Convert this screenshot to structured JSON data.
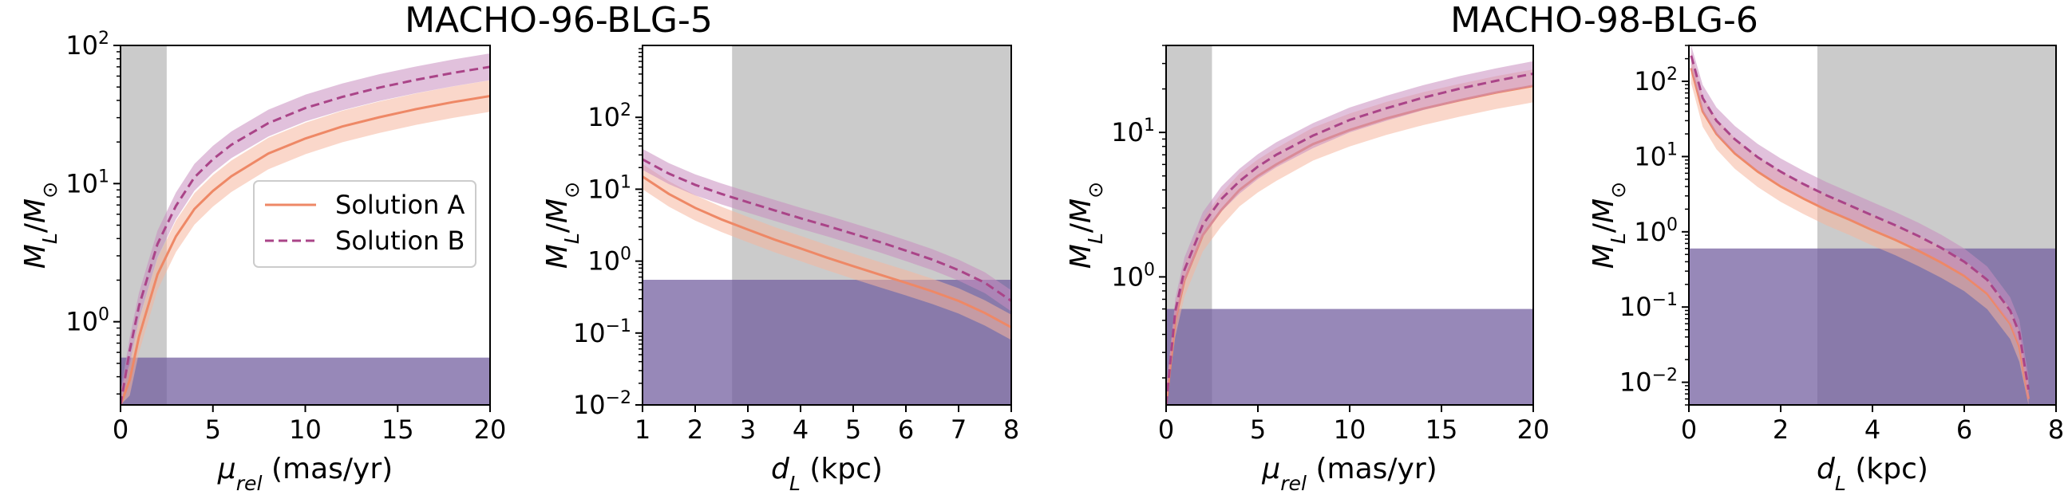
{
  "figure": {
    "titles": [
      "MACHO-96-BLG-5",
      "MACHO-98-BLG-6"
    ]
  },
  "colors": {
    "solution_a": "#ee8866",
    "solution_b": "#aa4488",
    "band_a": "#f6b79e",
    "band_b": "#c98ec0",
    "excluded_gray": "#bdbdbd",
    "excluded_purple": "#6f5a9c"
  },
  "legend": {
    "solution_a_label": "Solution A",
    "solution_b_label": "Solution B",
    "location": "center-right of first panel"
  },
  "chart_data": [
    {
      "type": "line",
      "event": "MACHO-96-BLG-5",
      "panel": "mass vs relative proper motion",
      "xlabel": "μrel (mas/yr)",
      "ylabel": "ML/M⊙",
      "xlim": [
        0,
        20
      ],
      "ylim": [
        0.25,
        100
      ],
      "yscale": "log",
      "xticks": [
        0,
        5,
        10,
        15,
        20
      ],
      "yticks": [
        1,
        10,
        100
      ],
      "ytick_exponents": [
        "0",
        "1",
        "2"
      ],
      "gray_excluded_x": [
        0,
        2.5
      ],
      "purple_excluded_y": [
        0.25,
        0.55
      ],
      "series": [
        {
          "name": "Solution A",
          "style": "solid",
          "x": [
            0,
            0.5,
            1,
            2,
            3,
            4,
            5,
            6,
            8,
            10,
            12,
            14,
            16,
            18,
            20
          ],
          "y": [
            0.25,
            0.38,
            0.78,
            2.2,
            4.15,
            6.55,
            8.85,
            11.3,
            16.5,
            21.2,
            25.9,
            30.2,
            34.6,
            38.9,
            43
          ],
          "band_factor": 1.3
        },
        {
          "name": "Solution B",
          "style": "dashed",
          "x": [
            0,
            0.5,
            1,
            2,
            3,
            4,
            5,
            6,
            8,
            10,
            12,
            14,
            16,
            18,
            20
          ],
          "y": [
            0.25,
            0.62,
            1.3,
            3.65,
            6.9,
            11.1,
            15,
            19.1,
            27.4,
            35.2,
            42.4,
            49.5,
            56.4,
            63.3,
            70
          ],
          "band_factor": 1.25
        }
      ]
    },
    {
      "type": "line",
      "event": "MACHO-96-BLG-5",
      "panel": "mass vs lens distance",
      "xlabel": "dL (kpc)",
      "ylabel": "ML/M⊙",
      "xlim": [
        1,
        8
      ],
      "ylim": [
        0.01,
        1000
      ],
      "yscale": "log",
      "xticks": [
        1,
        2,
        3,
        4,
        5,
        6,
        7,
        8
      ],
      "yticks": [
        0.01,
        0.1,
        1,
        10,
        100
      ],
      "ytick_exponents": [
        "−2",
        "−1",
        "0",
        "1",
        "2"
      ],
      "gray_excluded_x": [
        2.7,
        8
      ],
      "purple_excluded_y": [
        0.01,
        0.55
      ],
      "series": [
        {
          "name": "Solution A",
          "style": "solid",
          "x": [
            1,
            1.5,
            2,
            2.5,
            3,
            3.5,
            4,
            4.5,
            5,
            5.5,
            6,
            6.5,
            7,
            7.5,
            8
          ],
          "y": [
            15,
            8.6,
            5.5,
            3.8,
            2.75,
            2.0,
            1.5,
            1.12,
            0.85,
            0.65,
            0.5,
            0.38,
            0.28,
            0.19,
            0.12
          ],
          "band_factor": 1.5
        },
        {
          "name": "Solution B",
          "style": "dashed",
          "x": [
            1,
            1.5,
            2,
            2.5,
            3,
            3.5,
            4,
            4.5,
            5,
            5.5,
            6,
            6.5,
            7,
            7.5,
            8
          ],
          "y": [
            26,
            16.5,
            11.5,
            8.6,
            6.6,
            5.1,
            3.95,
            3.1,
            2.4,
            1.85,
            1.4,
            1.05,
            0.75,
            0.5,
            0.28
          ],
          "band_factor": 1.4
        }
      ]
    },
    {
      "type": "line",
      "event": "MACHO-98-BLG-6",
      "panel": "mass vs relative proper motion",
      "xlabel": "μrel (mas/yr)",
      "ylabel": "ML/M⊙",
      "xlim": [
        0,
        20
      ],
      "ylim": [
        0.13,
        40
      ],
      "yscale": "log",
      "xticks": [
        0,
        5,
        10,
        15,
        20
      ],
      "yticks": [
        1,
        10
      ],
      "ytick_exponents": [
        "0",
        "1"
      ],
      "gray_excluded_x": [
        0,
        2.5
      ],
      "purple_excluded_y": [
        0.13,
        0.6
      ],
      "series": [
        {
          "name": "Solution A",
          "style": "solid",
          "x": [
            0,
            0.5,
            1,
            2,
            3,
            4,
            5,
            6,
            8,
            10,
            12,
            14,
            16,
            18,
            20
          ],
          "y": [
            0.13,
            0.5,
            0.95,
            1.95,
            2.9,
            4.0,
            5.0,
            6.0,
            8.3,
            10.4,
            12.5,
            14.6,
            16.7,
            18.9,
            21
          ],
          "band_factor": 1.3
        },
        {
          "name": "Solution B",
          "style": "dashed",
          "x": [
            0,
            0.5,
            1,
            2,
            3,
            4,
            5,
            6,
            8,
            10,
            12,
            14,
            16,
            18,
            20
          ],
          "y": [
            0.13,
            0.58,
            1.12,
            2.3,
            3.45,
            4.6,
            5.8,
            7.0,
            9.5,
            12.2,
            14.7,
            17.4,
            20.1,
            22.8,
            25.5
          ],
          "band_factor": 1.22
        }
      ]
    },
    {
      "type": "line",
      "event": "MACHO-98-BLG-6",
      "panel": "mass vs lens distance",
      "xlabel": "dL (kpc)",
      "ylabel": "ML/M⊙",
      "xlim": [
        0,
        8
      ],
      "ylim": [
        0.005,
        300
      ],
      "yscale": "log",
      "xticks": [
        0,
        2,
        4,
        6,
        8
      ],
      "yticks": [
        0.01,
        0.1,
        1,
        10,
        100
      ],
      "ytick_exponents": [
        "−2",
        "−1",
        "0",
        "1",
        "2"
      ],
      "gray_excluded_x": [
        2.8,
        8
      ],
      "purple_excluded_y": [
        0.005,
        0.6
      ],
      "series": [
        {
          "name": "Solution A",
          "style": "solid",
          "x": [
            0.05,
            0.3,
            0.6,
            1,
            1.5,
            2,
            2.5,
            3,
            3.5,
            4,
            4.5,
            5,
            5.5,
            6,
            6.5,
            7,
            7.2,
            7.4
          ],
          "y": [
            150,
            40,
            20,
            11,
            6.3,
            4.0,
            2.75,
            1.95,
            1.45,
            1.05,
            0.78,
            0.56,
            0.39,
            0.26,
            0.15,
            0.06,
            0.03,
            0.006
          ],
          "band_factor": 1.6
        },
        {
          "name": "Solution B",
          "style": "dashed",
          "x": [
            0.05,
            0.3,
            0.6,
            1,
            1.5,
            2,
            2.5,
            3,
            3.5,
            4,
            4.5,
            5,
            5.5,
            6,
            6.5,
            7,
            7.2,
            7.4
          ],
          "y": [
            220,
            60,
            30,
            17,
            9.8,
            6.3,
            4.3,
            3.05,
            2.25,
            1.65,
            1.22,
            0.88,
            0.61,
            0.4,
            0.23,
            0.09,
            0.045,
            0.008
          ],
          "band_factor": 1.5
        }
      ]
    }
  ]
}
